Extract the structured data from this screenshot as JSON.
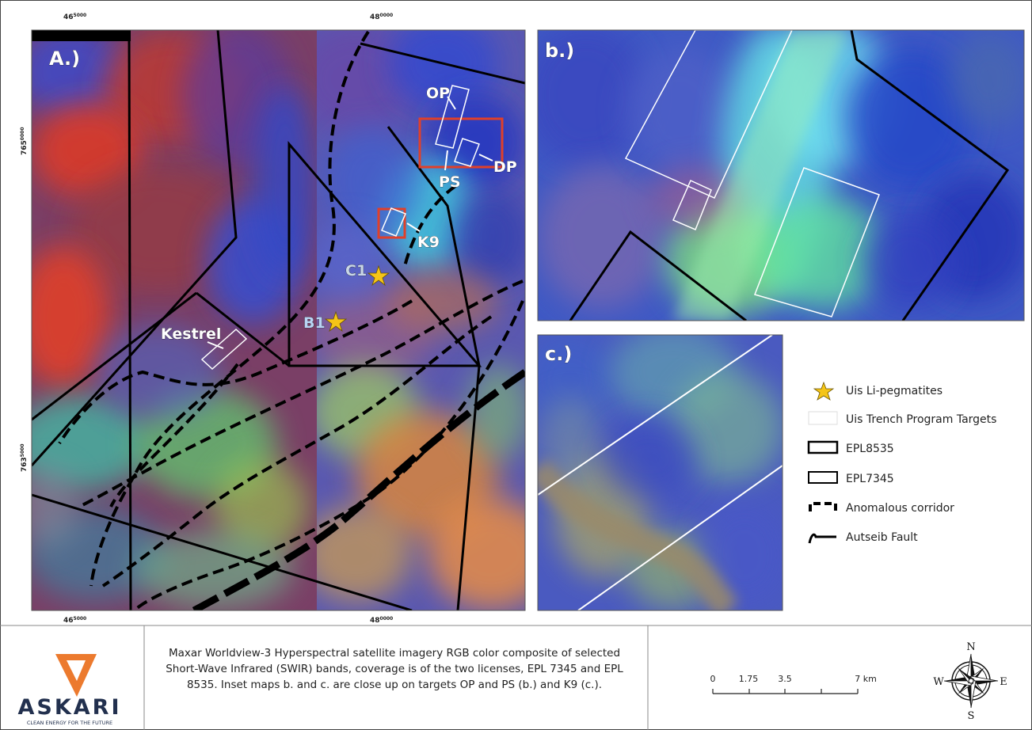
{
  "grid_labels": {
    "easting": [
      [
        "46",
        "5000"
      ],
      [
        "48",
        "0000"
      ]
    ],
    "northing": [
      [
        "765",
        "0000"
      ],
      [
        "763",
        "5000"
      ]
    ]
  },
  "panels": {
    "a": "A.)",
    "b": "b.)",
    "c": "c.)"
  },
  "targets": {
    "op": "OP",
    "dp": "DP",
    "ps": "PS",
    "k9": "K9",
    "c1": "C1",
    "b1": "B1",
    "kestrel": "Kestrel"
  },
  "legend": [
    "Uis Li-pegmatites",
    "Uis Trench Program Targets",
    "EPL8535",
    "EPL7345",
    "Anomalous corridor",
    "Autseib Fault"
  ],
  "footer": {
    "logo": {
      "name": "ASKARI",
      "tagline": "CLEAN ENERGY FOR THE FUTURE"
    },
    "caption": [
      "Maxar Worldview-3 Hyperspectral satellite imagery RGB color composite of selected",
      "Short-Wave Infrared (SWIR) bands, coverage is of the two licenses, EPL 7345 and EPL",
      "8535. Inset maps b. and c. are close up on targets OP and PS (b.) and K9 (c.)."
    ],
    "scale_bar": [
      "0",
      "1.75",
      "3.5",
      "7 km"
    ],
    "compass": {
      "n": "N",
      "s": "S",
      "e": "E",
      "w": "W"
    }
  }
}
